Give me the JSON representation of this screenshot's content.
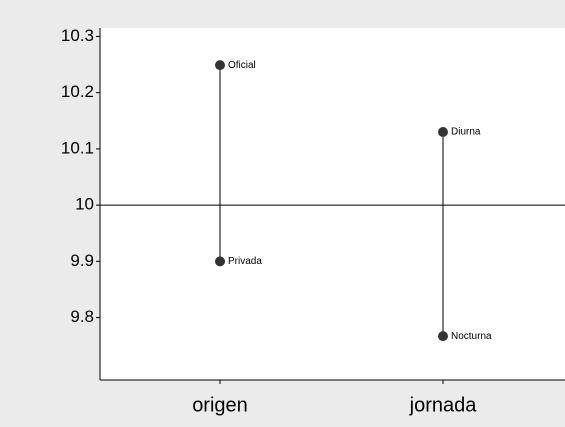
{
  "chart_data": {
    "type": "design",
    "categories": [
      "origen",
      "jornada"
    ],
    "groups": [
      {
        "labels": [
          "Oficial",
          "Privada"
        ],
        "values": [
          10.249,
          9.9
        ]
      },
      {
        "labels": [
          "Diurna",
          "Nocturna"
        ],
        "values": [
          10.13,
          9.767
        ]
      }
    ],
    "reference_line": 10,
    "color": "#333333",
    "ylim": [
      9.689,
      10.315
    ],
    "yticks": [
      {
        "value": 9.8,
        "label": "9.8"
      },
      {
        "value": 9.9,
        "label": "9.9"
      },
      10,
      {
        "value": 10.1,
        "label": "10.1"
      },
      {
        "value": 10.2,
        "label": "10.2"
      },
      {
        "value": 10.3,
        "label": "10.3"
      }
    ]
  }
}
